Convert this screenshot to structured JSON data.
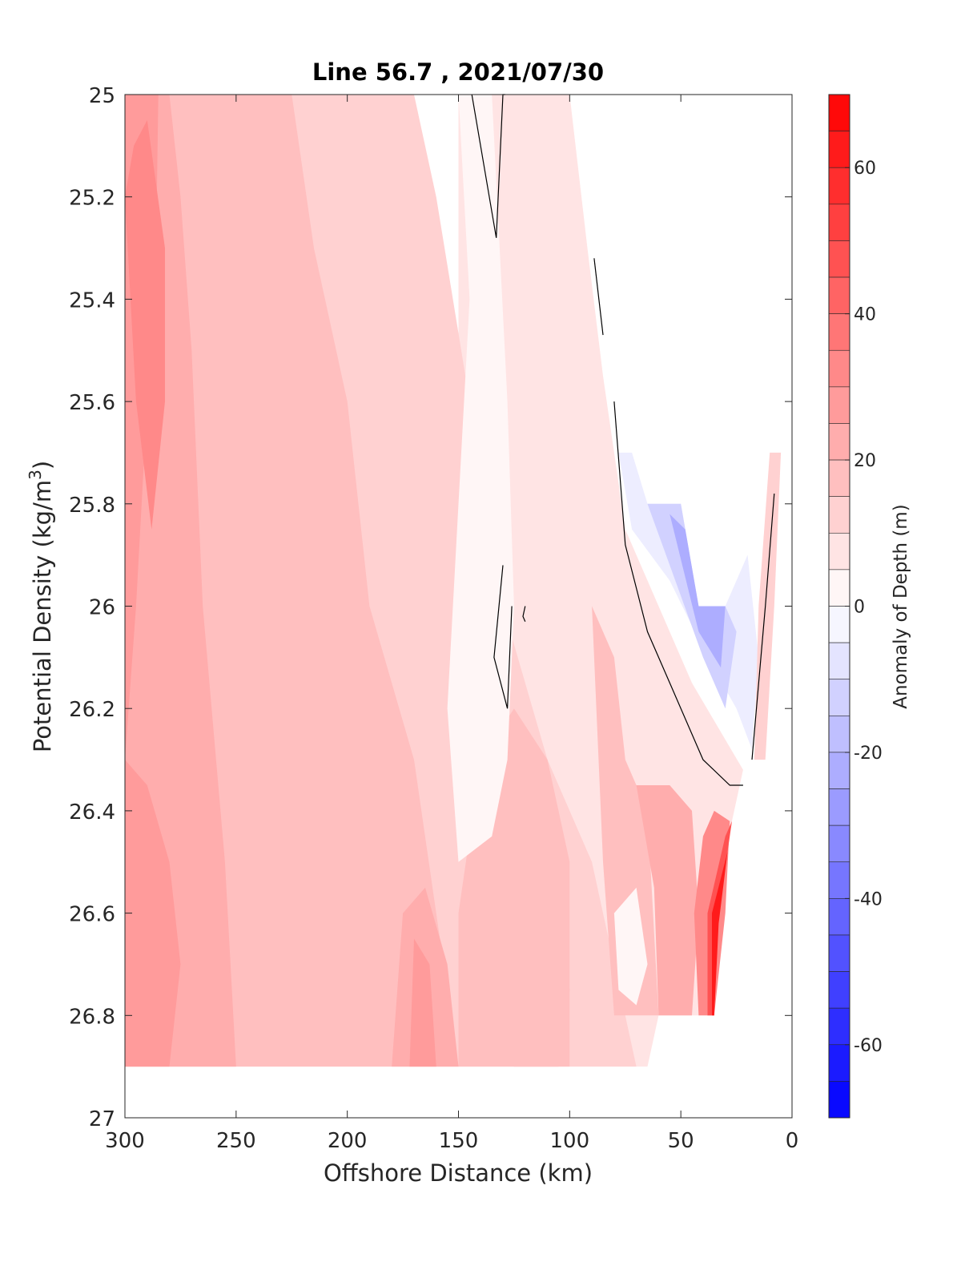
{
  "chart_data": {
    "type": "heatmap",
    "subtype": "filled-contour",
    "title": "Line 56.7 , 2021/07/30",
    "xlabel": "Offshore Distance (km)",
    "ylabel_main": "Potential Density (kg/m",
    "ylabel_sup": "3",
    "ylabel_tail": ")",
    "xlim": [
      300,
      0
    ],
    "ylim": [
      25,
      27
    ],
    "x_reversed": true,
    "y_reversed": true,
    "xticks": [
      "300",
      "250",
      "200",
      "150",
      "100",
      "50",
      "0"
    ],
    "yticks": [
      "25",
      "25.2",
      "25.4",
      "25.6",
      "25.8",
      "26",
      "26.2",
      "26.4",
      "26.6",
      "26.8",
      "27"
    ],
    "colorbar": {
      "label": "Anomaly of Depth (m)",
      "range": [
        -70,
        70
      ],
      "step": 5,
      "ticks": [
        "60",
        "40",
        "20",
        "0",
        "-20",
        "-40",
        "-60"
      ],
      "low_color": "#0000ff",
      "high_color": "#ff0000",
      "mid_color": "#ffffff"
    },
    "regions": [
      {
        "v": 7.5,
        "pts": [
          [
            300,
            25
          ],
          [
            300,
            26.9
          ],
          [
            65,
            26.9
          ],
          [
            60,
            26.8
          ],
          [
            35,
            26.8
          ],
          [
            35,
            26.6
          ],
          [
            27,
            26.42
          ],
          [
            22,
            26.32
          ],
          [
            45,
            26.15
          ],
          [
            75,
            25.85
          ],
          [
            85,
            25.55
          ],
          [
            92,
            25.3
          ],
          [
            100,
            25
          ],
          [
            150,
            25
          ],
          [
            150,
            26.9
          ],
          [
            300,
            26.9
          ]
        ]
      },
      {
        "v": 12.5,
        "pts": [
          [
            300,
            25
          ],
          [
            300,
            26.9
          ],
          [
            70,
            26.9
          ],
          [
            80,
            26.7
          ],
          [
            90,
            26.5
          ],
          [
            110,
            26.3
          ],
          [
            130,
            26.0
          ],
          [
            145,
            25.6
          ],
          [
            160,
            25.2
          ],
          [
            170,
            25
          ],
          [
            300,
            25
          ]
        ]
      },
      {
        "v": 17.5,
        "pts": [
          [
            300,
            25
          ],
          [
            300,
            26.9
          ],
          [
            150,
            26.9
          ],
          [
            160,
            26.6
          ],
          [
            170,
            26.3
          ],
          [
            190,
            26.0
          ],
          [
            200,
            25.6
          ],
          [
            215,
            25.3
          ],
          [
            225,
            25
          ],
          [
            300,
            25
          ]
        ]
      },
      {
        "v": 22.5,
        "pts": [
          [
            300,
            25
          ],
          [
            300,
            26.9
          ],
          [
            250,
            26.9
          ],
          [
            255,
            26.5
          ],
          [
            265,
            26.0
          ],
          [
            270,
            25.5
          ],
          [
            275,
            25.2
          ],
          [
            280,
            25
          ],
          [
            300,
            25
          ]
        ]
      },
      {
        "v": 27.5,
        "pts": [
          [
            300,
            25
          ],
          [
            300,
            26.3
          ],
          [
            295,
            26.0
          ],
          [
            290,
            25.6
          ],
          [
            286,
            25.3
          ],
          [
            285,
            25
          ],
          [
            300,
            25
          ]
        ]
      },
      {
        "v": 32.5,
        "pts": [
          [
            290,
            25.05
          ],
          [
            296,
            25.1
          ],
          [
            300,
            25.2
          ],
          [
            295,
            25.6
          ],
          [
            288,
            25.85
          ],
          [
            282,
            25.6
          ],
          [
            282,
            25.3
          ]
        ]
      },
      {
        "v": 27.5,
        "pts": [
          [
            300,
            26.3
          ],
          [
            290,
            26.35
          ],
          [
            280,
            26.5
          ],
          [
            275,
            26.7
          ],
          [
            280,
            26.9
          ],
          [
            300,
            26.9
          ]
        ]
      },
      {
        "v": 22.5,
        "pts": [
          [
            175,
            26.6
          ],
          [
            165,
            26.55
          ],
          [
            155,
            26.7
          ],
          [
            150,
            26.9
          ],
          [
            180,
            26.9
          ]
        ]
      },
      {
        "v": 27.5,
        "pts": [
          [
            170,
            26.65
          ],
          [
            163,
            26.7
          ],
          [
            160,
            26.9
          ],
          [
            172,
            26.9
          ]
        ]
      },
      {
        "v": 22.5,
        "pts": [
          [
            115,
            26.55
          ],
          [
            105,
            26.6
          ],
          [
            100,
            26.75
          ],
          [
            105,
            26.9
          ],
          [
            125,
            26.9
          ],
          [
            125,
            26.7
          ]
        ]
      },
      {
        "v": 27.5,
        "pts": [
          [
            115,
            26.65
          ],
          [
            108,
            26.7
          ],
          [
            107,
            26.85
          ],
          [
            115,
            26.9
          ],
          [
            120,
            26.8
          ]
        ]
      },
      {
        "v": 17.5,
        "pts": [
          [
            100,
            26.9
          ],
          [
            100,
            26.5
          ],
          [
            110,
            26.3
          ],
          [
            125,
            26.2
          ],
          [
            140,
            26.3
          ],
          [
            150,
            26.6
          ],
          [
            150,
            26.9
          ]
        ]
      },
      {
        "v": 2.5,
        "pts": [
          [
            150,
            25
          ],
          [
            135,
            25
          ],
          [
            128,
            25.6
          ],
          [
            125,
            26.0
          ],
          [
            128,
            26.3
          ],
          [
            135,
            26.45
          ],
          [
            150,
            26.5
          ],
          [
            155,
            26.2
          ],
          [
            150,
            25.8
          ],
          [
            145,
            25.4
          ]
        ]
      },
      {
        "v": 17.5,
        "pts": [
          [
            90,
            26.0
          ],
          [
            80,
            26.1
          ],
          [
            75,
            26.3
          ],
          [
            65,
            26.4
          ],
          [
            60,
            26.8
          ],
          [
            80,
            26.8
          ],
          [
            85,
            26.5
          ]
        ]
      },
      {
        "v": 22.5,
        "pts": [
          [
            70,
            26.35
          ],
          [
            55,
            26.35
          ],
          [
            45,
            26.4
          ],
          [
            42,
            26.6
          ],
          [
            45,
            26.8
          ],
          [
            60,
            26.8
          ],
          [
            62,
            26.55
          ]
        ]
      },
      {
        "v": 32.5,
        "pts": [
          [
            40,
            26.45
          ],
          [
            35,
            26.4
          ],
          [
            28,
            26.42
          ],
          [
            30,
            26.6
          ],
          [
            35,
            26.8
          ],
          [
            42,
            26.8
          ],
          [
            44,
            26.6
          ]
        ]
      },
      {
        "v": 47.5,
        "pts": [
          [
            30,
            26.45
          ],
          [
            27,
            26.42
          ],
          [
            33,
            26.6
          ],
          [
            35,
            26.8
          ],
          [
            38,
            26.8
          ],
          [
            38,
            26.6
          ]
        ]
      },
      {
        "v": 62.5,
        "pts": [
          [
            29,
            26.48
          ],
          [
            33,
            26.62
          ],
          [
            35,
            26.8
          ],
          [
            36,
            26.8
          ],
          [
            36,
            26.6
          ]
        ]
      },
      {
        "v": 2.5,
        "pts": [
          [
            80,
            26.6
          ],
          [
            70,
            26.55
          ],
          [
            65,
            26.7
          ],
          [
            70,
            26.78
          ],
          [
            78,
            26.75
          ]
        ]
      },
      {
        "v": -5,
        "pts": [
          [
            78,
            25.7
          ],
          [
            72,
            25.7
          ],
          [
            65,
            25.8
          ],
          [
            50,
            25.8
          ],
          [
            42,
            26.0
          ],
          [
            30,
            26.0
          ],
          [
            20,
            25.9
          ],
          [
            15,
            26.1
          ],
          [
            18,
            26.28
          ],
          [
            25,
            26.2
          ],
          [
            38,
            26.1
          ],
          [
            55,
            25.95
          ],
          [
            72,
            25.85
          ]
        ]
      },
      {
        "v": -12.5,
        "pts": [
          [
            65,
            25.8
          ],
          [
            50,
            25.8
          ],
          [
            42,
            26.0
          ],
          [
            30,
            26.0
          ],
          [
            25,
            26.05
          ],
          [
            30,
            26.2
          ],
          [
            40,
            26.1
          ],
          [
            55,
            25.92
          ]
        ]
      },
      {
        "v": -22.5,
        "pts": [
          [
            55,
            25.82
          ],
          [
            48,
            25.85
          ],
          [
            42,
            26.0
          ],
          [
            30,
            26.0
          ],
          [
            32,
            26.12
          ],
          [
            42,
            26.05
          ]
        ]
      },
      {
        "v": 12.5,
        "pts": [
          [
            10,
            25.7
          ],
          [
            5,
            25.7
          ],
          [
            8,
            26.0
          ],
          [
            12,
            26.3
          ],
          [
            17,
            26.3
          ],
          [
            15,
            26.0
          ]
        ]
      }
    ],
    "zero_contours": [
      [
        [
          144,
          25
        ],
        [
          133,
          25.28
        ],
        [
          130,
          25
        ],
        [
          129,
          25.0
        ]
      ],
      [
        [
          130,
          25.92
        ],
        [
          134,
          26.1
        ],
        [
          128,
          26.2
        ],
        [
          126,
          26.0
        ]
      ],
      [
        [
          120,
          26.0
        ],
        [
          121,
          26.02
        ],
        [
          120,
          26.03
        ]
      ],
      [
        [
          89,
          25.32
        ],
        [
          85,
          25.47
        ]
      ],
      [
        [
          80,
          25.6
        ],
        [
          75,
          25.88
        ],
        [
          65,
          26.05
        ],
        [
          55,
          26.15
        ],
        [
          40,
          26.3
        ],
        [
          28,
          26.35
        ],
        [
          22,
          26.35
        ]
      ],
      [
        [
          8,
          25.78
        ],
        [
          12,
          26.0
        ],
        [
          18,
          26.3
        ]
      ]
    ]
  }
}
